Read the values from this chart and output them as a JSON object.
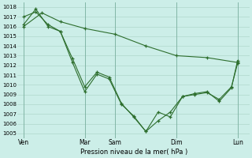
{
  "xlabel": "Pression niveau de la mer( hPa )",
  "background_color": "#cceee8",
  "grid_color": "#b0d8cc",
  "line_color": "#2d6e2d",
  "ylim": [
    1004.5,
    1018.5
  ],
  "yticks": [
    1005,
    1006,
    1007,
    1008,
    1009,
    1010,
    1011,
    1012,
    1013,
    1014,
    1015,
    1016,
    1017,
    1018
  ],
  "day_labels": [
    "Ven",
    "Mar",
    "Sam",
    "Dim",
    "Lun"
  ],
  "day_x": [
    0,
    10,
    15,
    25,
    35
  ],
  "xlim": [
    -1,
    37
  ],
  "line_smooth_x": [
    0,
    3,
    6,
    10,
    15,
    20,
    25,
    30,
    35
  ],
  "line_smooth_y": [
    1016.0,
    1017.4,
    1016.5,
    1015.8,
    1015.2,
    1014.0,
    1013.0,
    1012.8,
    1012.3
  ],
  "line_mid_x": [
    0,
    2,
    4,
    6,
    8,
    10,
    12,
    14,
    16,
    18,
    20,
    22,
    24,
    26,
    28,
    30,
    32,
    34,
    35
  ],
  "line_mid_y": [
    1017.0,
    1017.5,
    1016.2,
    1015.5,
    1012.3,
    1009.3,
    1011.1,
    1010.6,
    1008.0,
    1006.8,
    1005.2,
    1006.3,
    1007.2,
    1008.8,
    1009.0,
    1009.2,
    1008.5,
    1009.8,
    1012.2
  ],
  "line_low_x": [
    0,
    2,
    4,
    6,
    8,
    10,
    12,
    14,
    16,
    18,
    20,
    22,
    24,
    26,
    28,
    30,
    32,
    34,
    35
  ],
  "line_low_y": [
    1016.2,
    1017.8,
    1016.0,
    1015.5,
    1012.7,
    1009.8,
    1011.3,
    1010.8,
    1008.1,
    1006.7,
    1005.2,
    1007.2,
    1006.7,
    1008.8,
    1009.1,
    1009.3,
    1008.3,
    1009.7,
    1012.5
  ],
  "figsize": [
    3.2,
    2.0
  ],
  "dpi": 100
}
